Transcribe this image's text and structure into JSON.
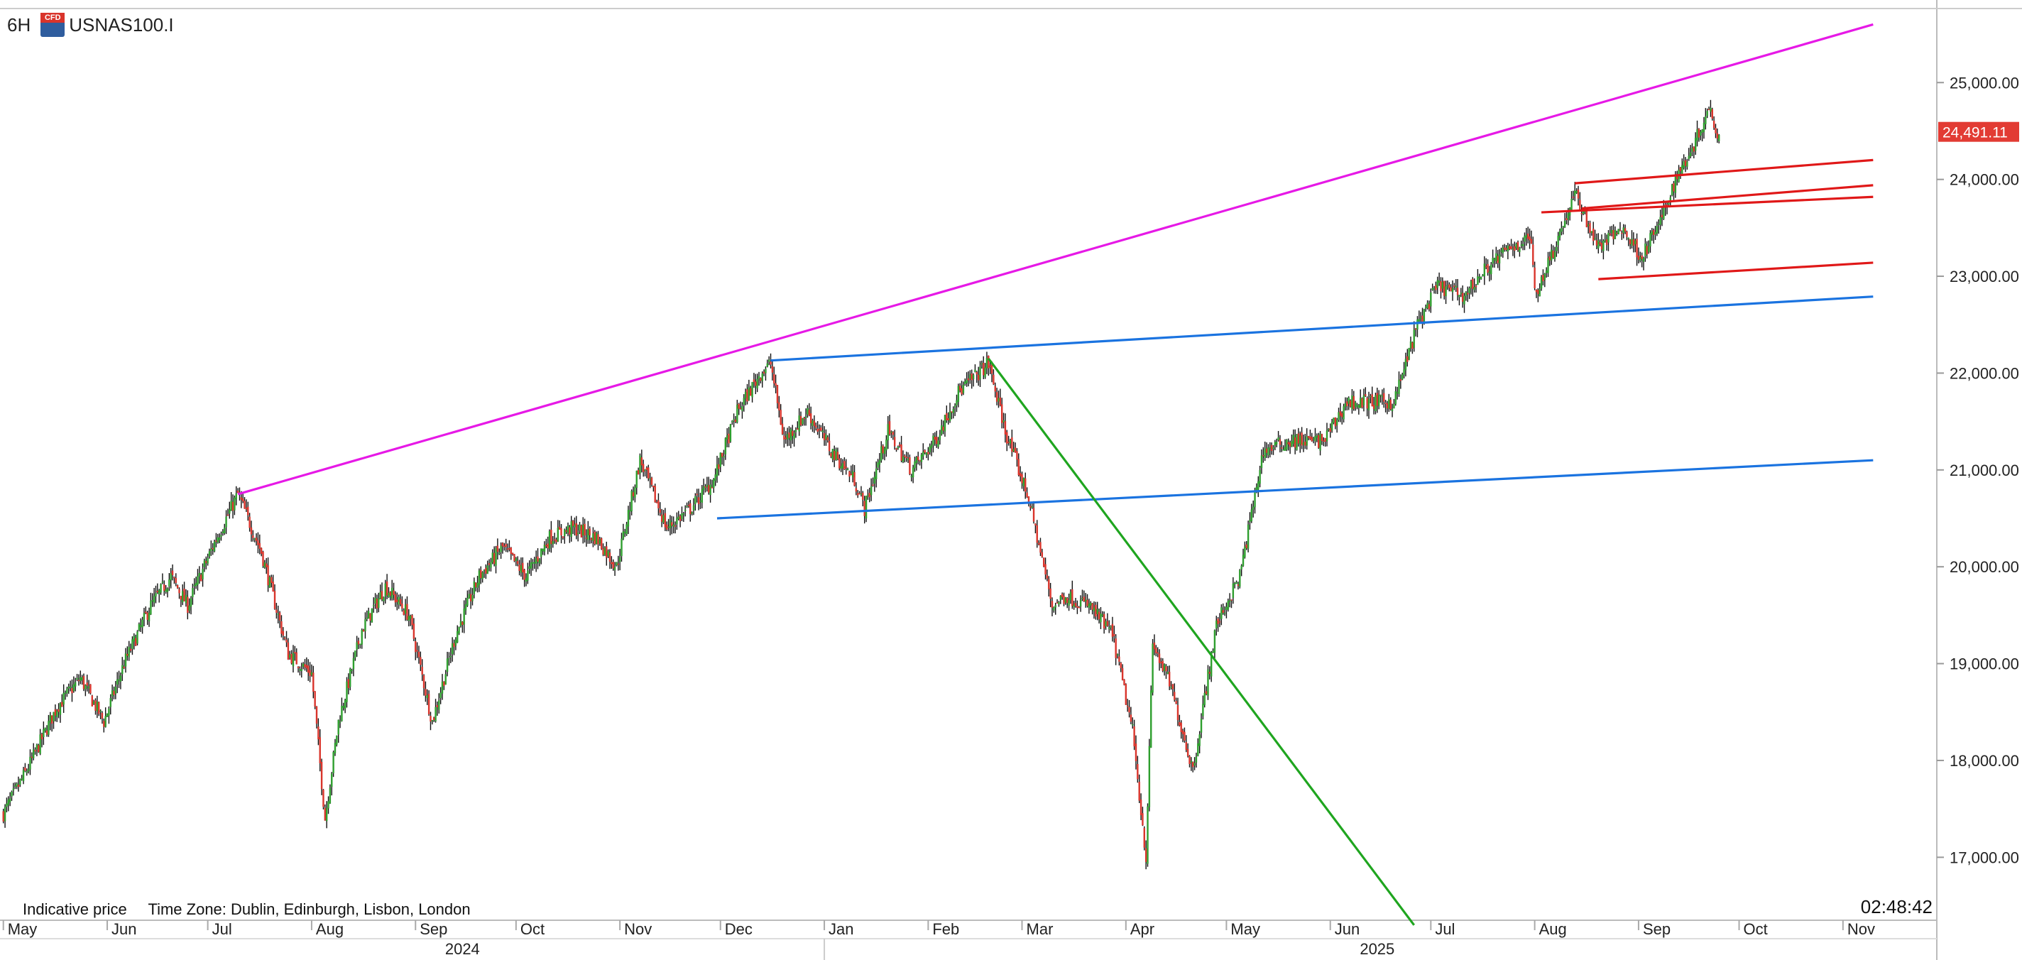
{
  "header": {
    "timeframe": "6H",
    "symbol": "USNAS100.I",
    "icon": "cfd-icon"
  },
  "footer": {
    "indicative": "Indicative price",
    "timezone": "Time Zone: Dublin, Edinburgh, Lisbon, London",
    "clock": "02:48:42"
  },
  "colors": {
    "up": "#2e9e2e",
    "down": "#d9342b",
    "magenta": "#e619e6",
    "blue": "#1a73e0",
    "green": "#1fa51f",
    "red": "#e01818",
    "price_tag": "#e23b33"
  },
  "chart_data": {
    "type": "line",
    "ylim": [
      16350,
      25750
    ],
    "y_ticks": [
      "25,000.00",
      "24,000.00",
      "23,000.00",
      "22,000.00",
      "21,000.00",
      "20,000.00",
      "19,000.00",
      "18,000.00",
      "17,000.00"
    ],
    "y_tick_values": [
      25000,
      24000,
      23000,
      22000,
      21000,
      20000,
      19000,
      18000,
      17000
    ],
    "last_price": 24491.11,
    "last_price_label": "24,491.11",
    "x_months": [
      "May",
      "Jun",
      "Jul",
      "Aug",
      "Sep",
      "Oct",
      "Nov",
      "Dec",
      "Jan",
      "Feb",
      "Mar",
      "Apr",
      "May",
      "Jun",
      "Jul",
      "Aug",
      "Sep",
      "Oct",
      "Nov"
    ],
    "x_month_starts": [
      "2024-05-01",
      "2024-06-01",
      "2024-07-01",
      "2024-08-01",
      "2024-09-01",
      "2024-10-01",
      "2024-11-01",
      "2024-12-01",
      "2025-01-01",
      "2025-02-01",
      "2025-03-01",
      "2025-04-01",
      "2025-05-01",
      "2025-06-01",
      "2025-07-01",
      "2025-08-01",
      "2025-09-01",
      "2025-10-01",
      "2025-11-01"
    ],
    "x_years": [
      "2024",
      "2025"
    ],
    "x_year_centers": [
      "2024-09-15",
      "2025-06-15"
    ],
    "price_path": [
      [
        "2024-05-01",
        17450
      ],
      [
        "2024-05-08",
        17900
      ],
      [
        "2024-05-17",
        18550
      ],
      [
        "2024-05-24",
        18850
      ],
      [
        "2024-05-31",
        18400
      ],
      [
        "2024-06-06",
        19000
      ],
      [
        "2024-06-14",
        19600
      ],
      [
        "2024-06-20",
        19900
      ],
      [
        "2024-06-25",
        19600
      ],
      [
        "2024-07-03",
        20250
      ],
      [
        "2024-07-10",
        20750
      ],
      [
        "2024-07-17",
        20150
      ],
      [
        "2024-07-25",
        19100
      ],
      [
        "2024-08-01",
        18900
      ],
      [
        "2024-08-05",
        17400
      ],
      [
        "2024-08-09",
        18400
      ],
      [
        "2024-08-16",
        19350
      ],
      [
        "2024-08-23",
        19800
      ],
      [
        "2024-08-30",
        19500
      ],
      [
        "2024-09-06",
        18400
      ],
      [
        "2024-09-13",
        19300
      ],
      [
        "2024-09-20",
        19900
      ],
      [
        "2024-09-27",
        20200
      ],
      [
        "2024-10-04",
        19900
      ],
      [
        "2024-10-11",
        20300
      ],
      [
        "2024-10-18",
        20400
      ],
      [
        "2024-10-25",
        20300
      ],
      [
        "2024-10-31",
        20000
      ],
      [
        "2024-11-07",
        21100
      ],
      [
        "2024-11-15",
        20400
      ],
      [
        "2024-11-22",
        20600
      ],
      [
        "2024-11-29",
        20900
      ],
      [
        "2024-12-06",
        21600
      ],
      [
        "2024-12-13",
        22000
      ],
      [
        "2024-12-16",
        22100
      ],
      [
        "2024-12-20",
        21300
      ],
      [
        "2024-12-27",
        21600
      ],
      [
        "2025-01-03",
        21200
      ],
      [
        "2025-01-10",
        20900
      ],
      [
        "2025-01-13",
        20600
      ],
      [
        "2025-01-20",
        21400
      ],
      [
        "2025-01-27",
        21000
      ],
      [
        "2025-02-03",
        21300
      ],
      [
        "2025-02-10",
        21800
      ],
      [
        "2025-02-19",
        22100
      ],
      [
        "2025-02-24",
        21400
      ],
      [
        "2025-03-03",
        20700
      ],
      [
        "2025-03-10",
        19600
      ],
      [
        "2025-03-14",
        19700
      ],
      [
        "2025-03-21",
        19600
      ],
      [
        "2025-03-28",
        19300
      ],
      [
        "2025-04-03",
        18300
      ],
      [
        "2025-04-07",
        17000
      ],
      [
        "2025-04-09",
        19200
      ],
      [
        "2025-04-14",
        18800
      ],
      [
        "2025-04-21",
        17900
      ],
      [
        "2025-04-28",
        19400
      ],
      [
        "2025-05-05",
        19900
      ],
      [
        "2025-05-12",
        21200
      ],
      [
        "2025-05-20",
        21300
      ],
      [
        "2025-05-30",
        21300
      ],
      [
        "2025-06-06",
        21700
      ],
      [
        "2025-06-13",
        21700
      ],
      [
        "2025-06-20",
        21700
      ],
      [
        "2025-06-27",
        22500
      ],
      [
        "2025-07-03",
        22900
      ],
      [
        "2025-07-11",
        22800
      ],
      [
        "2025-07-18",
        23100
      ],
      [
        "2025-07-25",
        23300
      ],
      [
        "2025-07-31",
        23400
      ],
      [
        "2025-08-01",
        22800
      ],
      [
        "2025-08-08",
        23400
      ],
      [
        "2025-08-13",
        23850
      ],
      [
        "2025-08-20",
        23300
      ],
      [
        "2025-08-27",
        23500
      ],
      [
        "2025-09-02",
        23200
      ],
      [
        "2025-09-08",
        23600
      ],
      [
        "2025-09-12",
        24000
      ],
      [
        "2025-09-18",
        24400
      ],
      [
        "2025-09-22",
        24750
      ],
      [
        "2025-09-25",
        24450
      ]
    ],
    "trendlines": [
      {
        "name": "magenta",
        "color": "magenta",
        "from": [
          "2024-07-10",
          20750
        ],
        "to": [
          "2025-11-10",
          25600
        ]
      },
      {
        "name": "blue-upper",
        "color": "blue",
        "from": [
          "2024-12-16",
          22130
        ],
        "to": [
          "2025-11-10",
          22790
        ]
      },
      {
        "name": "blue-lower",
        "color": "blue",
        "from": [
          "2024-11-30",
          20500
        ],
        "to": [
          "2025-11-10",
          21100
        ]
      },
      {
        "name": "green",
        "color": "green",
        "from": [
          "2025-02-19",
          22150
        ],
        "to": [
          "2025-06-26",
          16300
        ]
      },
      {
        "name": "red-1",
        "color": "red",
        "from": [
          "2025-08-13",
          23960
        ],
        "to": [
          "2025-11-10",
          24200
        ]
      },
      {
        "name": "red-2",
        "color": "red",
        "from": [
          "2025-08-15",
          23700
        ],
        "to": [
          "2025-11-10",
          23940
        ]
      },
      {
        "name": "red-3",
        "color": "red",
        "from": [
          "2025-08-03",
          23660
        ],
        "to": [
          "2025-11-10",
          23820
        ]
      },
      {
        "name": "red-4",
        "color": "red",
        "from": [
          "2025-08-20",
          22970
        ],
        "to": [
          "2025-11-10",
          23140
        ]
      }
    ]
  }
}
